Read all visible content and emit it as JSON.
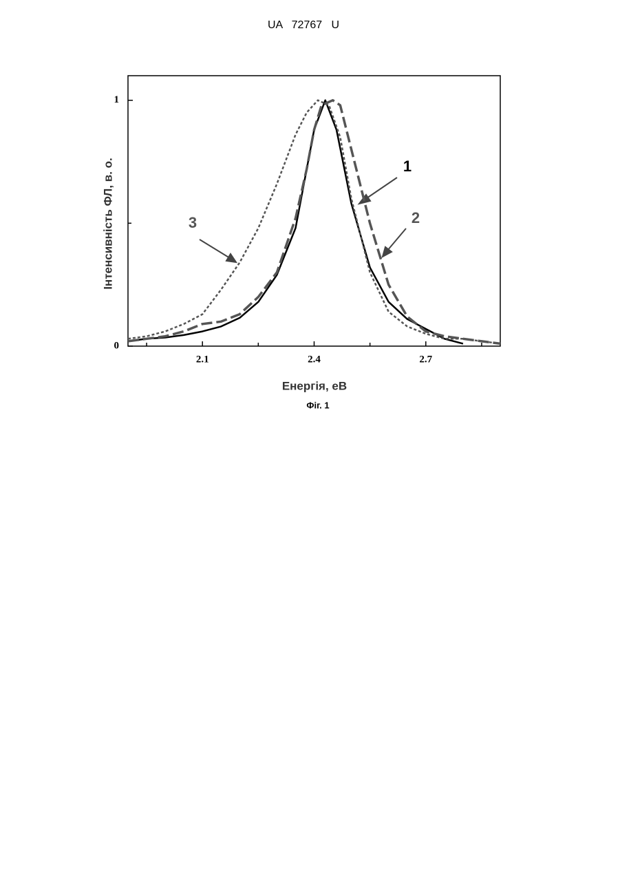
{
  "header": "UA   72767   U",
  "caption": "Фіг. 1",
  "chart_data": {
    "type": "line",
    "xlabel": "Енергія, еВ",
    "ylabel": "Інтенсивність ФЛ, в. о.",
    "xlim": [
      1.9,
      2.9
    ],
    "ylim": [
      0,
      1.1
    ],
    "xticks": [
      2.1,
      2.4,
      2.7
    ],
    "yticks": [
      0,
      1
    ],
    "minor_xticks": [
      1.95,
      2.25,
      2.55,
      2.85
    ],
    "minor_yticks": [
      0.5
    ],
    "series": [
      {
        "name": "1",
        "color": "#000000",
        "style": "solid",
        "x": [
          1.9,
          1.95,
          2.0,
          2.05,
          2.1,
          2.15,
          2.2,
          2.25,
          2.3,
          2.35,
          2.38,
          2.4,
          2.43,
          2.46,
          2.5,
          2.55,
          2.6,
          2.65,
          2.7,
          2.75,
          2.8
        ],
        "values": [
          0.02,
          0.03,
          0.035,
          0.045,
          0.06,
          0.08,
          0.115,
          0.18,
          0.29,
          0.48,
          0.72,
          0.88,
          1,
          0.88,
          0.58,
          0.32,
          0.18,
          0.11,
          0.07,
          0.03,
          0.01
        ]
      },
      {
        "name": "2",
        "color": "#555555",
        "style": "dashed",
        "x": [
          1.9,
          1.95,
          2.0,
          2.05,
          2.1,
          2.15,
          2.2,
          2.25,
          2.3,
          2.35,
          2.38,
          2.4,
          2.42,
          2.45,
          2.47,
          2.5,
          2.55,
          2.6,
          2.65,
          2.7,
          2.75,
          2.8,
          2.85,
          2.9
        ],
        "values": [
          0.02,
          0.03,
          0.04,
          0.06,
          0.09,
          0.1,
          0.13,
          0.2,
          0.3,
          0.52,
          0.72,
          0.88,
          0.98,
          1,
          0.98,
          0.8,
          0.5,
          0.25,
          0.12,
          0.06,
          0.04,
          0.03,
          0.02,
          0.01
        ]
      },
      {
        "name": "3",
        "color": "#555555",
        "style": "dotted",
        "x": [
          1.9,
          1.95,
          2.0,
          2.05,
          2.1,
          2.15,
          2.2,
          2.25,
          2.3,
          2.35,
          2.38,
          2.41,
          2.44,
          2.47,
          2.5,
          2.55,
          2.6,
          2.65,
          2.7,
          2.75,
          2.8,
          2.85,
          2.9
        ],
        "values": [
          0.03,
          0.04,
          0.06,
          0.09,
          0.13,
          0.23,
          0.34,
          0.48,
          0.66,
          0.86,
          0.95,
          1,
          0.98,
          0.85,
          0.6,
          0.3,
          0.14,
          0.08,
          0.05,
          0.03,
          0.03,
          0.02,
          0.01
        ]
      }
    ]
  }
}
